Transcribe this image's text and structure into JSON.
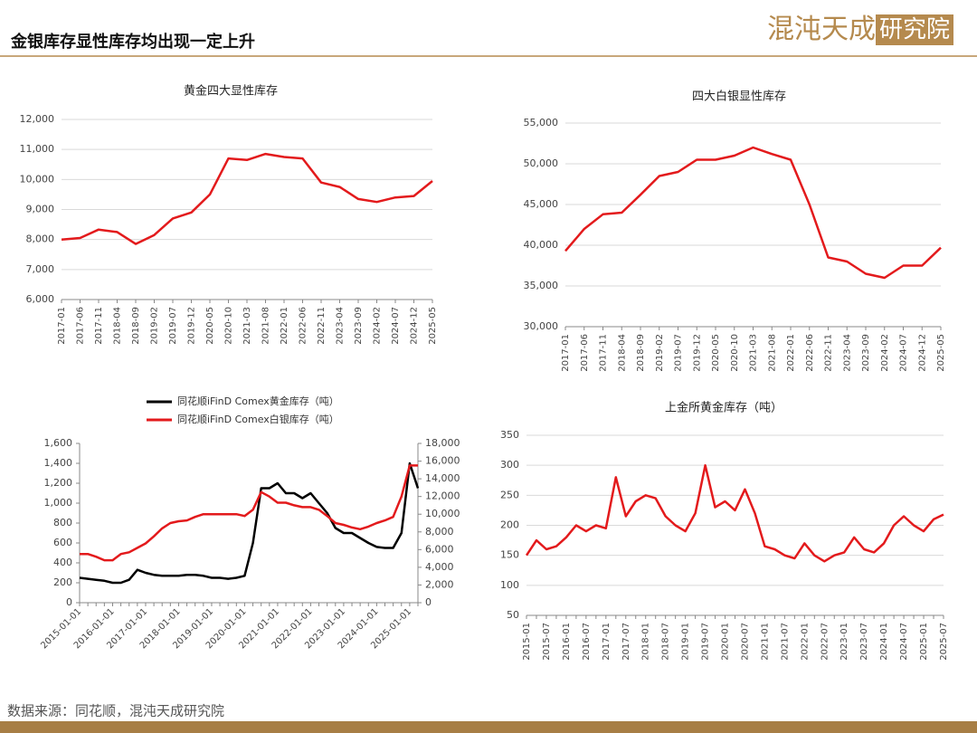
{
  "header": {
    "title": "金银库存显性库存均出现一定上升",
    "logo_left": "混沌天成",
    "logo_right": "研究院"
  },
  "footer": {
    "source": "数据来源：同花顺，混沌天成研究院"
  },
  "chart_data": [
    {
      "type": "line",
      "title": "黄金四大显性库存",
      "color": "#e31a1c",
      "grid": true,
      "categories": [
        "2017-01",
        "2017-06",
        "2017-11",
        "2018-04",
        "2018-09",
        "2019-02",
        "2019-07",
        "2019-12",
        "2020-05",
        "2020-10",
        "2021-03",
        "2021-08",
        "2022-01",
        "2022-06",
        "2022-11",
        "2023-04",
        "2023-09",
        "2024-02",
        "2024-07",
        "2024-12",
        "2025-05"
      ],
      "values": [
        8000,
        8050,
        8330,
        8250,
        7850,
        8150,
        8700,
        8900,
        9500,
        10700,
        10650,
        10850,
        10750,
        10700,
        9900,
        9750,
        9350,
        9250,
        9400,
        9450,
        9950
      ],
      "ylim": [
        6000,
        12000
      ],
      "yticks": [
        {
          "value": 6000,
          "label": "6,000"
        },
        {
          "value": 7000,
          "label": "7,000"
        },
        {
          "value": 8000,
          "label": "8,000"
        },
        {
          "value": 9000,
          "label": "9,000"
        },
        {
          "value": 10000,
          "label": "10,000"
        },
        {
          "value": 11000,
          "label": "11,000"
        },
        {
          "value": 12000,
          "label": "12,000"
        }
      ]
    },
    {
      "type": "line",
      "title": "四大白银显性库存",
      "color": "#e31a1c",
      "grid": true,
      "categories": [
        "2017-01",
        "2017-06",
        "2017-11",
        "2018-04",
        "2018-09",
        "2019-02",
        "2019-07",
        "2019-12",
        "2020-05",
        "2020-10",
        "2021-03",
        "2021-08",
        "2022-01",
        "2022-06",
        "2022-11",
        "2023-04",
        "2023-09",
        "2024-02",
        "2024-07",
        "2024-12",
        "2025-05"
      ],
      "values": [
        39300,
        42000,
        43800,
        44000,
        46200,
        48500,
        49000,
        50500,
        50500,
        51000,
        52000,
        51200,
        50500,
        45000,
        38500,
        38000,
        36500,
        36000,
        37500,
        37500,
        39700
      ],
      "ylim": [
        30000,
        55000
      ],
      "yticks": [
        {
          "value": 30000,
          "label": "30,000"
        },
        {
          "value": 35000,
          "label": "35,000"
        },
        {
          "value": 40000,
          "label": "40,000"
        },
        {
          "value": 45000,
          "label": "45,000"
        },
        {
          "value": 50000,
          "label": "50,000"
        },
        {
          "value": 55000,
          "label": "55,000"
        }
      ]
    },
    {
      "type": "line",
      "grid": false,
      "categories": [
        "2015-01-01",
        null,
        null,
        null,
        "2016-01-01",
        null,
        null,
        null,
        "2017-01-01",
        null,
        null,
        null,
        "2018-01-01",
        null,
        null,
        null,
        "2019-01-01",
        null,
        null,
        null,
        "2020-01-01",
        null,
        null,
        null,
        "2021-01-01",
        null,
        null,
        null,
        "2022-01-01",
        null,
        null,
        null,
        "2023-01-01",
        null,
        null,
        null,
        "2024-01-01",
        null,
        null,
        null,
        "2025-01-01",
        null
      ],
      "series": [
        {
          "name": "同花顺iFinD Comex黄金库存（吨）",
          "color": "#000000",
          "values": [
            250,
            240,
            230,
            220,
            200,
            200,
            230,
            330,
            300,
            280,
            270,
            270,
            270,
            280,
            280,
            270,
            250,
            250,
            240,
            250,
            270,
            600,
            1150,
            1150,
            1200,
            1100,
            1100,
            1050,
            1100,
            1000,
            900,
            750,
            700,
            700,
            650,
            600,
            560,
            550,
            550,
            700,
            1400,
            1150
          ]
        },
        {
          "name": "同花顺iFinD Comex白银库存（吨）",
          "color": "#e31a1c",
          "axis": "y2",
          "values": [
            5500,
            5500,
            5200,
            4800,
            4800,
            5500,
            5700,
            6200,
            6700,
            7500,
            8400,
            9000,
            9200,
            9300,
            9700,
            10000,
            10000,
            10000,
            10000,
            10000,
            9800,
            10500,
            12500,
            12000,
            11300,
            11300,
            11000,
            10800,
            10800,
            10500,
            9800,
            9000,
            8800,
            8500,
            8300,
            8600,
            9000,
            9300,
            9700,
            12000,
            15500,
            15500
          ]
        }
      ],
      "ylim": [
        0,
        1600
      ],
      "yticks": [
        0,
        200,
        400,
        600,
        800,
        {
          "value": 1000,
          "label": "1,000"
        },
        {
          "value": 1200,
          "label": "1,200"
        },
        {
          "value": 1400,
          "label": "1,400"
        },
        {
          "value": 1600,
          "label": "1,600"
        }
      ],
      "y2lim": [
        0,
        18000
      ],
      "y2ticks": [
        0,
        {
          "value": 2000,
          "label": "2,000"
        },
        {
          "value": 4000,
          "label": "4,000"
        },
        {
          "value": 6000,
          "label": "6,000"
        },
        {
          "value": 8000,
          "label": "8,000"
        },
        {
          "value": 10000,
          "label": "10,000"
        },
        {
          "value": 12000,
          "label": "12,000"
        },
        {
          "value": 14000,
          "label": "14,000"
        },
        {
          "value": 16000,
          "label": "16,000"
        },
        {
          "value": 18000,
          "label": "18,000"
        }
      ]
    },
    {
      "type": "line",
      "title": "上金所黄金库存（吨）",
      "color": "#e31a1c",
      "grid": true,
      "categories": [
        "2015-01",
        null,
        "2015-07",
        null,
        "2016-01",
        null,
        "2016-07",
        null,
        "2017-01",
        null,
        "2017-07",
        null,
        "2018-01",
        null,
        "2018-07",
        null,
        "2019-01",
        null,
        "2019-07",
        null,
        "2020-01",
        null,
        "2020-07",
        null,
        "2021-01",
        null,
        "2021-07",
        null,
        "2022-01",
        null,
        "2022-07",
        null,
        "2023-01",
        null,
        "2023-07",
        null,
        "2024-01",
        null,
        "2024-07",
        null,
        "2025-01",
        null,
        "2025-07"
      ],
      "values": [
        150,
        175,
        160,
        165,
        180,
        200,
        190,
        200,
        195,
        280,
        215,
        240,
        250,
        245,
        215,
        200,
        190,
        220,
        300,
        230,
        240,
        225,
        260,
        220,
        165,
        160,
        150,
        145,
        170,
        150,
        140,
        150,
        155,
        180,
        160,
        155,
        170,
        200,
        215,
        200,
        190,
        210,
        218
      ],
      "ylim": [
        50,
        350
      ],
      "yticks": [
        50,
        100,
        150,
        200,
        250,
        300,
        350
      ]
    }
  ]
}
